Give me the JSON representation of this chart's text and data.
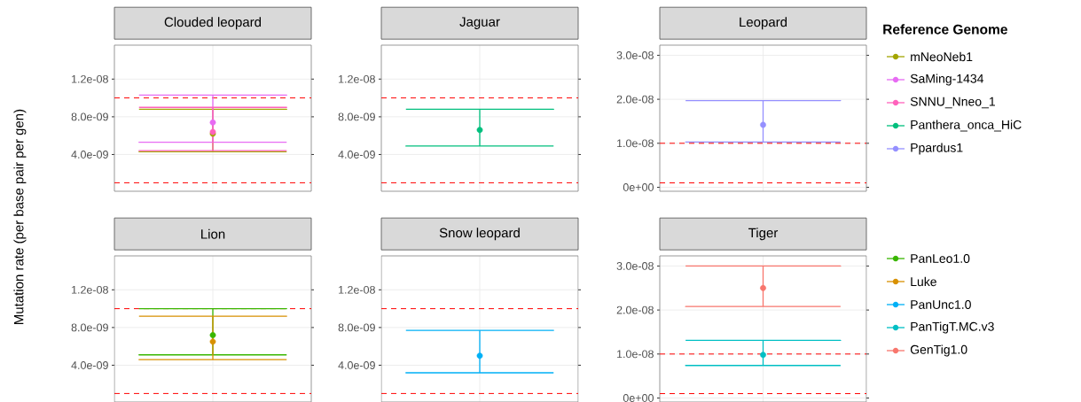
{
  "chart_data": [
    {
      "type": "scatter",
      "title": "Clouded leopard",
      "ylabel": "Mutation rate (per base pair per gen)",
      "legend_title": "Reference Genome",
      "legend": "right",
      "marker": "circle",
      "grid": true,
      "categories": [
        null
      ],
      "ylim": [
        1e-10,
        1.56e-08
      ],
      "yticks": [
        {
          "value": 4e-09,
          "label": "4.0e-09"
        },
        {
          "value": 8e-09,
          "label": "8.0e-09"
        },
        {
          "value": 1.2e-08,
          "label": "1.2e-08"
        }
      ],
      "ref_lines": [
        {
          "axis": "y",
          "value": 1e-08,
          "color": "#ff0000",
          "line_style": "dashed"
        },
        {
          "axis": "y",
          "value": 1e-09,
          "color": "#ff0000",
          "line_style": "dashed"
        }
      ],
      "series": [
        {
          "name": "mNeoNeb1",
          "color": "#a3a500",
          "values": [
            6.2e-09
          ],
          "errors": [
            [
              4.3e-09,
              8.8e-09
            ]
          ]
        },
        {
          "name": "SaMing-1434",
          "color": "#e76bf3",
          "values": [
            7.4e-09
          ],
          "errors": [
            [
              5.3e-09,
              1.03e-08
            ]
          ]
        },
        {
          "name": "SNNU_Nneo_1",
          "color": "#ff62bc",
          "values": [
            6.4e-09
          ],
          "errors": [
            [
              4.4e-09,
              9e-09
            ]
          ]
        }
      ]
    },
    {
      "type": "scatter",
      "title": "Jaguar",
      "legend": "right",
      "marker": "circle",
      "grid": true,
      "categories": [
        null
      ],
      "ylim": [
        1e-10,
        1.56e-08
      ],
      "yticks": [
        {
          "value": 4e-09,
          "label": "4.0e-09"
        },
        {
          "value": 8e-09,
          "label": "8.0e-09"
        },
        {
          "value": 1.2e-08,
          "label": "1.2e-08"
        }
      ],
      "ref_lines": [
        {
          "axis": "y",
          "value": 1e-08,
          "color": "#ff0000",
          "line_style": "dashed"
        },
        {
          "axis": "y",
          "value": 1e-09,
          "color": "#ff0000",
          "line_style": "dashed"
        }
      ],
      "series": [
        {
          "name": "Panthera_onca_HiC",
          "color": "#00bf7d",
          "values": [
            6.6e-09
          ],
          "errors": [
            [
              4.9e-09,
              8.8e-09
            ]
          ]
        }
      ]
    },
    {
      "type": "scatter",
      "title": "Leopard",
      "legend": "right",
      "marker": "circle",
      "grid": true,
      "categories": [
        null
      ],
      "ylim": [
        -9e-10,
        3.23e-08
      ],
      "yticks": [
        {
          "value": 0,
          "label": "0e+00"
        },
        {
          "value": 1e-08,
          "label": "1.0e-08"
        },
        {
          "value": 2e-08,
          "label": "2.0e-08"
        },
        {
          "value": 3e-08,
          "label": "3.0e-08"
        }
      ],
      "ref_lines": [
        {
          "axis": "y",
          "value": 1e-08,
          "color": "#ff0000",
          "line_style": "dashed"
        },
        {
          "axis": "y",
          "value": 1e-09,
          "color": "#ff0000",
          "line_style": "dashed"
        }
      ],
      "series": [
        {
          "name": "Ppardus1",
          "color": "#9590ff",
          "values": [
            1.42e-08
          ],
          "errors": [
            [
              1.03e-08,
              1.97e-08
            ]
          ]
        }
      ]
    },
    {
      "type": "scatter",
      "title": "Lion",
      "legend": "right",
      "marker": "circle",
      "grid": true,
      "categories": [
        null
      ],
      "ylim": [
        1e-10,
        1.56e-08
      ],
      "yticks": [
        {
          "value": 4e-09,
          "label": "4.0e-09"
        },
        {
          "value": 8e-09,
          "label": "8.0e-09"
        },
        {
          "value": 1.2e-08,
          "label": "1.2e-08"
        }
      ],
      "ref_lines": [
        {
          "axis": "y",
          "value": 1e-08,
          "color": "#ff0000",
          "line_style": "dashed"
        },
        {
          "axis": "y",
          "value": 1e-09,
          "color": "#ff0000",
          "line_style": "dashed"
        }
      ],
      "series": [
        {
          "name": "PanLeo1.0",
          "color": "#39b600",
          "values": [
            7.2e-09
          ],
          "errors": [
            [
              5.1e-09,
              1e-08
            ]
          ]
        },
        {
          "name": "Luke",
          "color": "#d89000",
          "values": [
            6.5e-09
          ],
          "errors": [
            [
              4.6e-09,
              9.2e-09
            ]
          ]
        }
      ]
    },
    {
      "type": "scatter",
      "title": "Snow leopard",
      "legend": "right",
      "marker": "circle",
      "grid": true,
      "categories": [
        null
      ],
      "ylim": [
        1e-10,
        1.56e-08
      ],
      "yticks": [
        {
          "value": 4e-09,
          "label": "4.0e-09"
        },
        {
          "value": 8e-09,
          "label": "8.0e-09"
        },
        {
          "value": 1.2e-08,
          "label": "1.2e-08"
        }
      ],
      "ref_lines": [
        {
          "axis": "y",
          "value": 1e-08,
          "color": "#ff0000",
          "line_style": "dashed"
        },
        {
          "axis": "y",
          "value": 1e-09,
          "color": "#ff0000",
          "line_style": "dashed"
        }
      ],
      "series": [
        {
          "name": "PanUnc1.0",
          "color": "#00b0f6",
          "values": [
            5e-09
          ],
          "errors": [
            [
              3.2e-09,
              7.7e-09
            ]
          ]
        }
      ]
    },
    {
      "type": "scatter",
      "title": "Tiger",
      "legend": "right",
      "marker": "circle",
      "grid": true,
      "categories": [
        null
      ],
      "ylim": [
        -9e-10,
        3.23e-08
      ],
      "yticks": [
        {
          "value": 0,
          "label": "0e+00"
        },
        {
          "value": 1e-08,
          "label": "1.0e-08"
        },
        {
          "value": 2e-08,
          "label": "2.0e-08"
        },
        {
          "value": 3e-08,
          "label": "3.0e-08"
        }
      ],
      "ref_lines": [
        {
          "axis": "y",
          "value": 1e-08,
          "color": "#ff0000",
          "line_style": "dashed"
        },
        {
          "axis": "y",
          "value": 1e-09,
          "color": "#ff0000",
          "line_style": "dashed"
        }
      ],
      "series": [
        {
          "name": "PanTigT.MC.v3",
          "color": "#00bfc4",
          "values": [
            9.8e-09
          ],
          "errors": [
            [
              7.4e-09,
              1.31e-08
            ]
          ]
        },
        {
          "name": "GenTig1.0",
          "color": "#f8766d",
          "values": [
            2.5e-08
          ],
          "errors": [
            [
              2.08e-08,
              3e-08
            ]
          ]
        }
      ]
    }
  ]
}
